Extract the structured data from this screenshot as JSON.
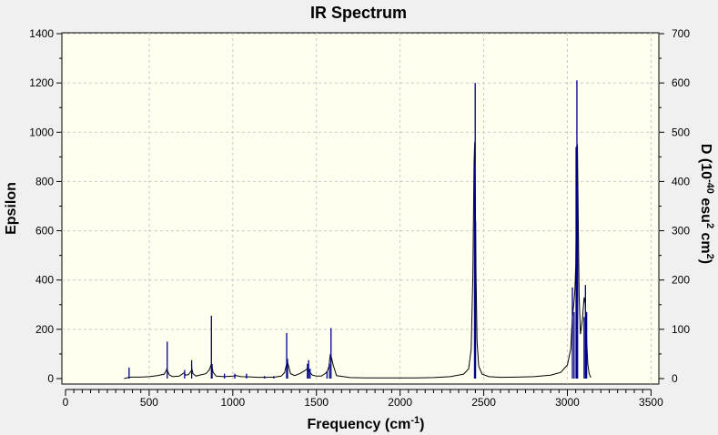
{
  "chart_data": {
    "type": "line",
    "title": "IR Spectrum",
    "xlabel": "Frequency (cm",
    "xlabel_sup": "-1",
    "xlabel_end": ")",
    "ylabel": "Epsilon",
    "y2label_parts": {
      "a": "D (10",
      "b": "-40",
      "c": " esu",
      "d": "2",
      "e": " cm",
      "f": "2",
      "g": ")"
    },
    "xlim": [
      0,
      3500
    ],
    "ylim": [
      0,
      1400
    ],
    "y2lim": [
      0,
      700
    ],
    "x_ticks": [
      "0",
      "500",
      "1000",
      "1500",
      "2000",
      "2500",
      "3000",
      "3500"
    ],
    "y_ticks": [
      "0",
      "200",
      "400",
      "600",
      "800",
      "1000",
      "1200",
      "1400"
    ],
    "y2_ticks": [
      "0",
      "100",
      "200",
      "300",
      "400",
      "500",
      "600",
      "700"
    ],
    "grid": true,
    "colors": {
      "plot_bg": "#fffff0",
      "spectrum": "#000000",
      "sticks": "#00008b"
    },
    "series": [
      {
        "kind": "spectrum",
        "x": [
          350,
          380,
          400,
          450,
          500,
          550,
          590,
          600,
          606,
          612,
          620,
          640,
          680,
          705,
          711,
          717,
          735,
          750,
          756,
          762,
          780,
          800,
          840,
          860,
          870,
          876,
          882,
          900,
          950,
          1000,
          1020,
          1050,
          1100,
          1150,
          1200,
          1250,
          1290,
          1310,
          1320,
          1326,
          1332,
          1345,
          1370,
          1400,
          1430,
          1445,
          1452,
          1460,
          1475,
          1500,
          1530,
          1555,
          1565,
          1575,
          1582,
          1590,
          1600,
          1620,
          1700,
          1800,
          1900,
          2000,
          2100,
          2200,
          2300,
          2380,
          2410,
          2425,
          2435,
          2442,
          2446,
          2450,
          2454,
          2460,
          2470,
          2490,
          2530,
          2600,
          2700,
          2800,
          2900,
          2960,
          3000,
          3020,
          3030,
          3038,
          3045,
          3050,
          3055,
          3060,
          3065,
          3070,
          3078,
          3090,
          3100,
          3108,
          3115,
          3122,
          3130,
          3140
        ],
        "y": [
          0,
          5,
          6,
          6,
          8,
          12,
          18,
          30,
          40,
          28,
          15,
          8,
          10,
          22,
          24,
          14,
          16,
          30,
          38,
          20,
          10,
          14,
          20,
          36,
          56,
          48,
          26,
          10,
          8,
          10,
          12,
          8,
          7,
          5,
          5,
          6,
          10,
          25,
          55,
          70,
          55,
          20,
          12,
          20,
          32,
          40,
          38,
          26,
          14,
          10,
          10,
          22,
          30,
          50,
          95,
          85,
          55,
          12,
          4,
          3,
          3,
          3,
          3,
          4,
          8,
          18,
          40,
          120,
          420,
          870,
          960,
          720,
          420,
          150,
          50,
          18,
          8,
          5,
          6,
          8,
          14,
          25,
          55,
          120,
          250,
          300,
          360,
          460,
          760,
          950,
          640,
          340,
          180,
          240,
          330,
          300,
          160,
          60,
          20,
          4
        ]
      },
      {
        "kind": "sticks",
        "x": [
          380,
          608,
          712,
          754,
          872,
          876,
          950,
          1012,
          1082,
          1190,
          1245,
          1322,
          1327,
          1446,
          1453,
          1462,
          1563,
          1578,
          1587,
          2445,
          2449,
          2451,
          3030,
          3040,
          3052,
          3057,
          3061,
          3100,
          3108,
          3115
        ],
        "y": [
          45,
          150,
          35,
          75,
          255,
          60,
          20,
          20,
          20,
          10,
          10,
          185,
          80,
          60,
          75,
          40,
          30,
          60,
          205,
          870,
          1200,
          640,
          370,
          270,
          940,
          1210,
          780,
          250,
          380,
          270
        ]
      }
    ]
  }
}
